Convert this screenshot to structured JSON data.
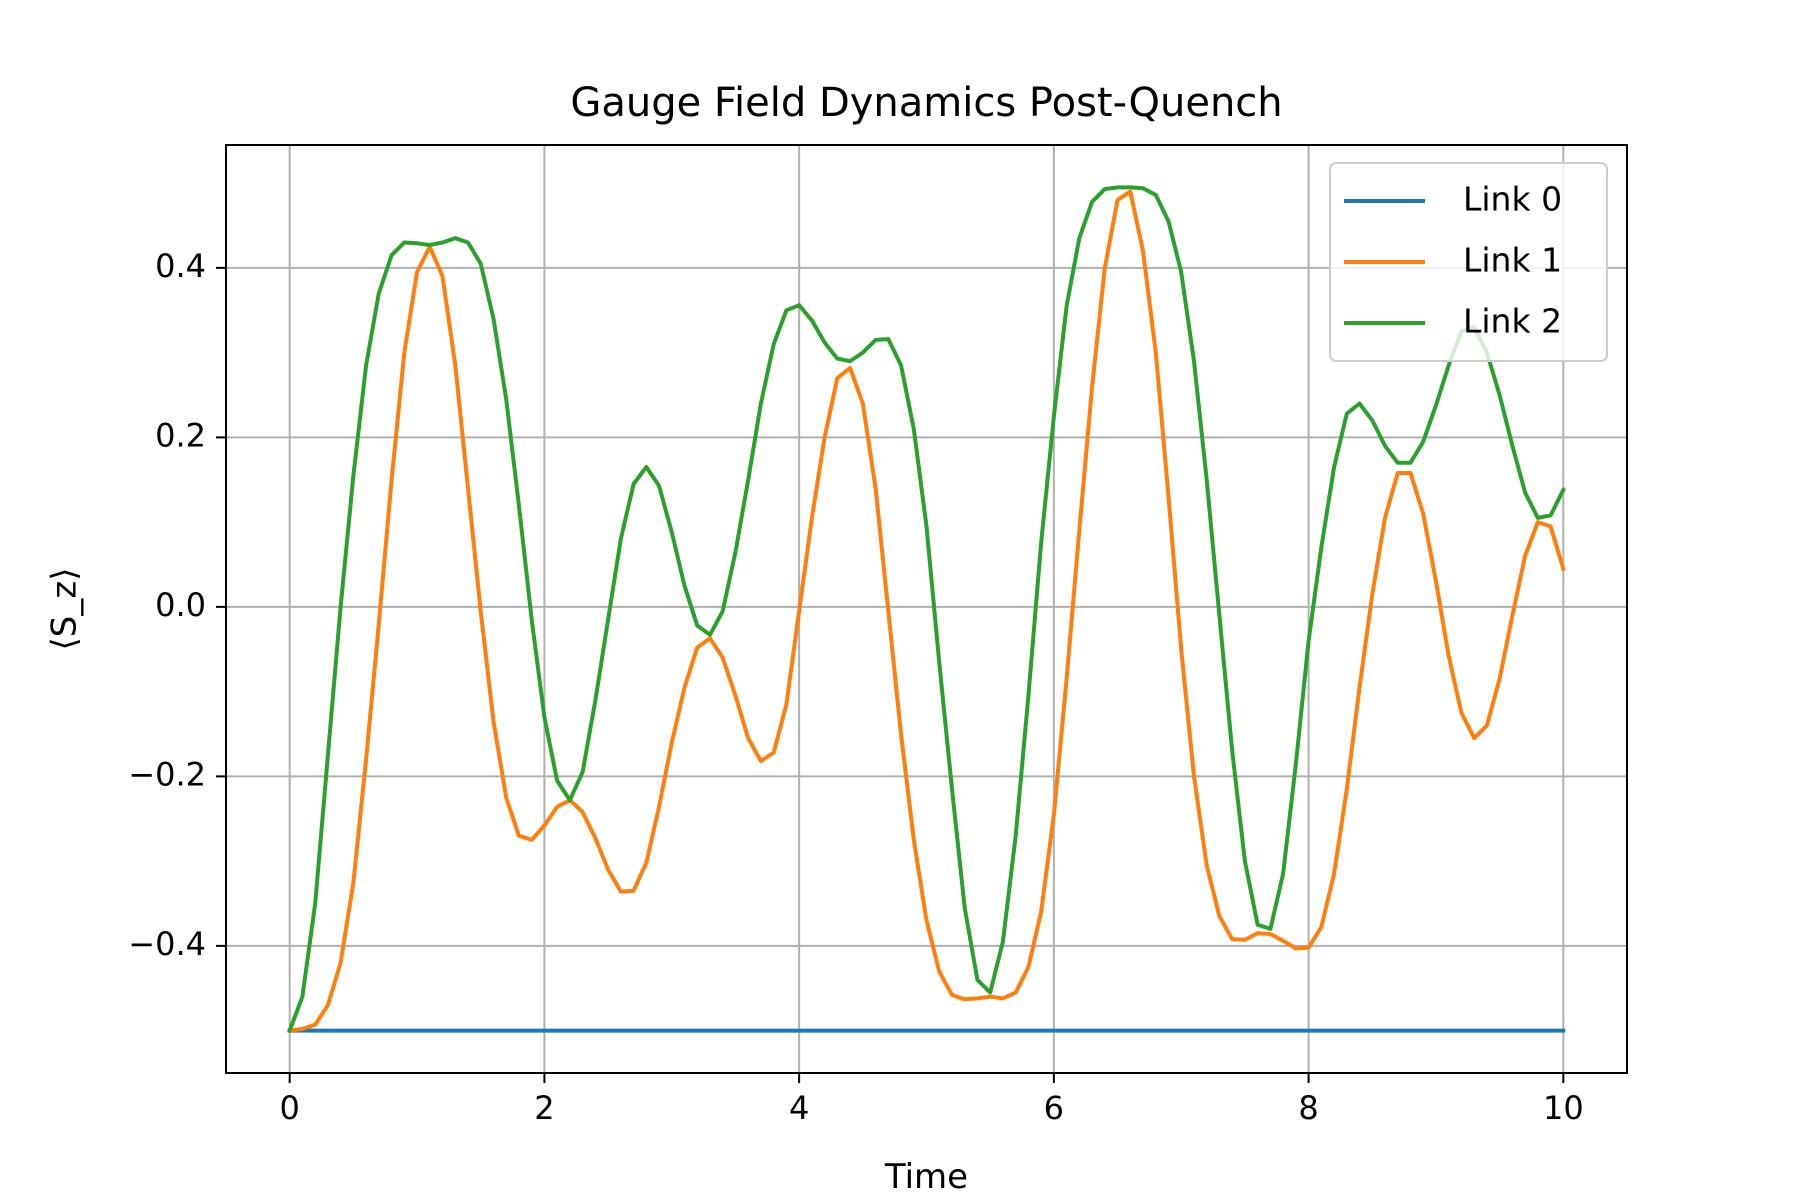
{
  "chart_data": {
    "type": "line",
    "title": "Gauge Field Dynamics Post-Quench",
    "xlabel": "Time",
    "ylabel": "⟨S_z⟩",
    "xlim": [
      -0.5,
      10.5
    ],
    "ylim": [
      -0.55,
      0.545
    ],
    "xticks": [
      0,
      2,
      4,
      6,
      8,
      10
    ],
    "xtick_labels": [
      "0",
      "2",
      "4",
      "6",
      "8",
      "10"
    ],
    "yticks": [
      -0.4,
      -0.2,
      0.0,
      0.2,
      0.4
    ],
    "ytick_labels": [
      "−0.4",
      "−0.2",
      "0.0",
      "0.2",
      "0.4"
    ],
    "grid": true,
    "legend_position": "top-right",
    "series": [
      {
        "name": "Link 0",
        "color": "#1f77b4",
        "x": [
          0,
          10
        ],
        "y": [
          -0.5,
          -0.5
        ]
      },
      {
        "name": "Link 1",
        "color": "#ff7f0e",
        "x": [
          0,
          0.1,
          0.2,
          0.3,
          0.4,
          0.5,
          0.6,
          0.7,
          0.8,
          0.9,
          1.0,
          1.1,
          1.2,
          1.3,
          1.4,
          1.5,
          1.6,
          1.7,
          1.8,
          1.9,
          2.0,
          2.1,
          2.2,
          2.3,
          2.4,
          2.5,
          2.6,
          2.7,
          2.8,
          2.9,
          3.0,
          3.1,
          3.2,
          3.3,
          3.4,
          3.5,
          3.6,
          3.7,
          3.8,
          3.9,
          4.0,
          4.1,
          4.2,
          4.3,
          4.4,
          4.5,
          4.6,
          4.7,
          4.8,
          4.9,
          5.0,
          5.1,
          5.2,
          5.3,
          5.4,
          5.5,
          5.6,
          5.7,
          5.8,
          5.9,
          6.0,
          6.1,
          6.2,
          6.3,
          6.4,
          6.5,
          6.6,
          6.7,
          6.8,
          6.9,
          7.0,
          7.1,
          7.2,
          7.3,
          7.4,
          7.5,
          7.6,
          7.7,
          7.8,
          7.9,
          8.0,
          8.1,
          8.2,
          8.3,
          8.4,
          8.5,
          8.6,
          8.7,
          8.8,
          8.9,
          9.0,
          9.1,
          9.2,
          9.3,
          9.4,
          9.5,
          9.6,
          9.7,
          9.8,
          9.9,
          10.0
        ],
        "y": [
          -0.5,
          -0.498,
          -0.493,
          -0.47,
          -0.42,
          -0.325,
          -0.18,
          -0.02,
          0.15,
          0.3,
          0.395,
          0.425,
          0.39,
          0.285,
          0.14,
          -0.005,
          -0.135,
          -0.225,
          -0.27,
          -0.275,
          -0.258,
          -0.236,
          -0.228,
          -0.242,
          -0.273,
          -0.31,
          -0.336,
          -0.335,
          -0.302,
          -0.236,
          -0.16,
          -0.095,
          -0.048,
          -0.037,
          -0.06,
          -0.105,
          -0.155,
          -0.182,
          -0.172,
          -0.115,
          -0.005,
          0.105,
          0.2,
          0.27,
          0.282,
          0.24,
          0.14,
          -0.005,
          -0.15,
          -0.275,
          -0.37,
          -0.43,
          -0.458,
          -0.463,
          -0.462,
          -0.46,
          -0.462,
          -0.455,
          -0.425,
          -0.36,
          -0.245,
          -0.085,
          0.09,
          0.26,
          0.4,
          0.48,
          0.49,
          0.42,
          0.3,
          0.13,
          -0.05,
          -0.2,
          -0.305,
          -0.365,
          -0.392,
          -0.393,
          -0.385,
          -0.386,
          -0.394,
          -0.403,
          -0.402,
          -0.378,
          -0.315,
          -0.215,
          -0.095,
          0.015,
          0.105,
          0.158,
          0.158,
          0.11,
          0.03,
          -0.058,
          -0.125,
          -0.155,
          -0.14,
          -0.085,
          -0.01,
          0.06,
          0.1,
          0.095,
          0.045
        ]
      },
      {
        "name": "Link 2",
        "color": "#2ca02c",
        "x": [
          0,
          0.1,
          0.2,
          0.3,
          0.4,
          0.5,
          0.6,
          0.7,
          0.8,
          0.9,
          1.0,
          1.1,
          1.2,
          1.3,
          1.4,
          1.5,
          1.6,
          1.7,
          1.8,
          1.9,
          2.0,
          2.1,
          2.2,
          2.3,
          2.4,
          2.5,
          2.6,
          2.7,
          2.8,
          2.9,
          3.0,
          3.1,
          3.2,
          3.3,
          3.4,
          3.5,
          3.6,
          3.7,
          3.8,
          3.9,
          4.0,
          4.1,
          4.2,
          4.3,
          4.4,
          4.5,
          4.6,
          4.7,
          4.8,
          4.9,
          5.0,
          5.1,
          5.2,
          5.3,
          5.4,
          5.5,
          5.6,
          5.7,
          5.8,
          5.9,
          6.0,
          6.1,
          6.2,
          6.3,
          6.4,
          6.5,
          6.6,
          6.7,
          6.8,
          6.9,
          7.0,
          7.1,
          7.2,
          7.3,
          7.4,
          7.5,
          7.6,
          7.7,
          7.8,
          7.9,
          8.0,
          8.1,
          8.2,
          8.3,
          8.4,
          8.5,
          8.6,
          8.7,
          8.8,
          8.9,
          9.0,
          9.1,
          9.2,
          9.3,
          9.4,
          9.5,
          9.6,
          9.7,
          9.8,
          9.9,
          10.0
        ],
        "y": [
          -0.5,
          -0.46,
          -0.35,
          -0.175,
          0.0,
          0.155,
          0.285,
          0.37,
          0.415,
          0.43,
          0.429,
          0.427,
          0.43,
          0.435,
          0.43,
          0.405,
          0.34,
          0.245,
          0.12,
          -0.015,
          -0.13,
          -0.205,
          -0.228,
          -0.195,
          -0.11,
          -0.015,
          0.08,
          0.145,
          0.165,
          0.143,
          0.088,
          0.025,
          -0.022,
          -0.033,
          -0.005,
          0.065,
          0.15,
          0.24,
          0.31,
          0.35,
          0.356,
          0.338,
          0.312,
          0.293,
          0.29,
          0.3,
          0.315,
          0.316,
          0.285,
          0.21,
          0.095,
          -0.065,
          -0.215,
          -0.355,
          -0.44,
          -0.455,
          -0.395,
          -0.27,
          -0.105,
          0.075,
          0.225,
          0.355,
          0.435,
          0.478,
          0.493,
          0.495,
          0.495,
          0.494,
          0.486,
          0.455,
          0.395,
          0.29,
          0.15,
          -0.01,
          -0.17,
          -0.3,
          -0.375,
          -0.38,
          -0.315,
          -0.185,
          -0.04,
          0.07,
          0.165,
          0.228,
          0.24,
          0.22,
          0.19,
          0.17,
          0.17,
          0.195,
          0.238,
          0.285,
          0.325,
          0.33,
          0.3,
          0.25,
          0.19,
          0.135,
          0.105,
          0.108,
          0.138
        ]
      }
    ]
  }
}
